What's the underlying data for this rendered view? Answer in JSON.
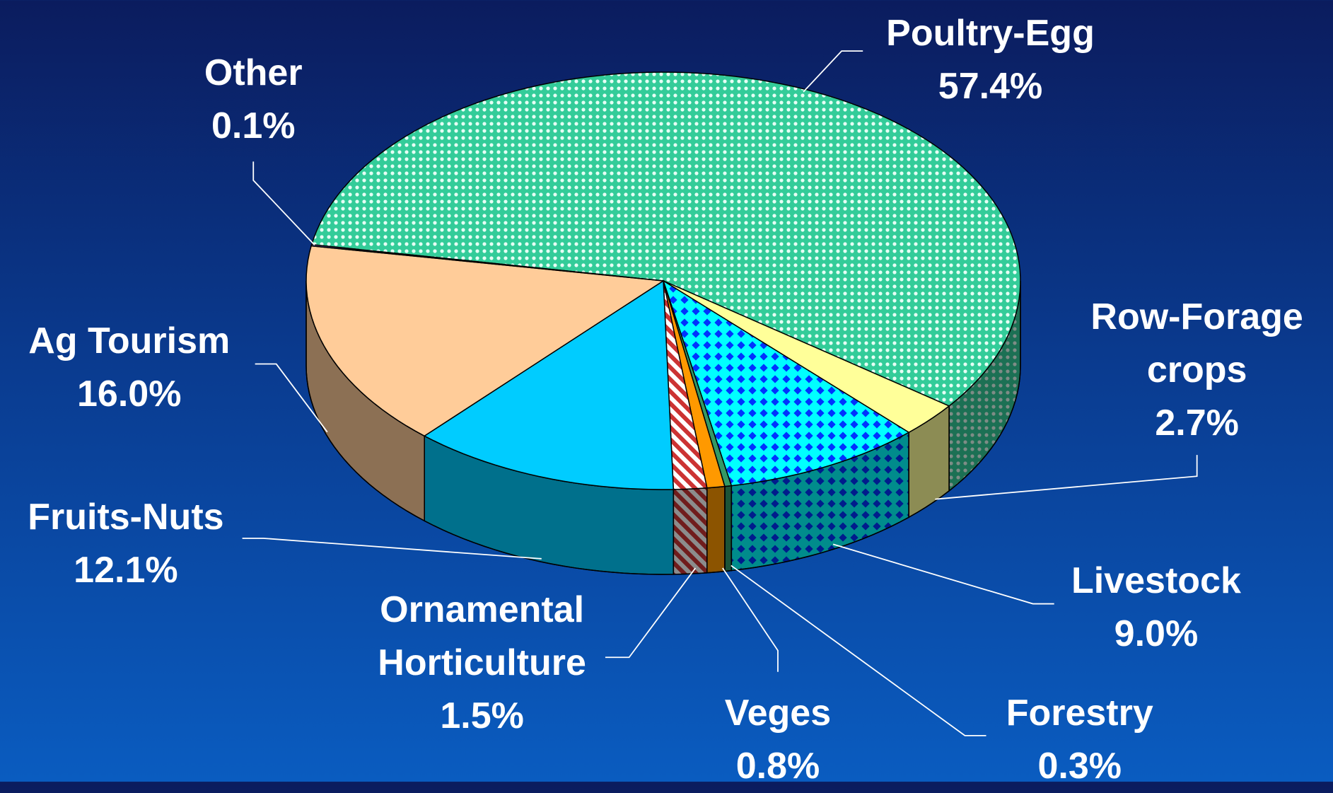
{
  "chart_data": {
    "type": "pie",
    "categories": [
      "Poultry-Egg",
      "Row-Forage crops",
      "Livestock",
      "Forestry",
      "Veges",
      "Ornamental Horticulture",
      "Fruits-Nuts",
      "Ag Tourism",
      "Other"
    ],
    "values": [
      57.4,
      2.7,
      9.0,
      0.3,
      0.8,
      1.5,
      12.1,
      16.0,
      0.1
    ],
    "value_labels": [
      "57.4%",
      "2.7%",
      "9.0%",
      "0.3%",
      "0.8%",
      "1.5%",
      "12.1%",
      "16.0%",
      "0.1%"
    ],
    "colors": [
      "#33cc99",
      "#ffff99",
      "#00ffff",
      "#339966",
      "#ff9900",
      "#cc3333",
      "#00ccff",
      "#ffcc99",
      "#9999ff"
    ]
  }
}
